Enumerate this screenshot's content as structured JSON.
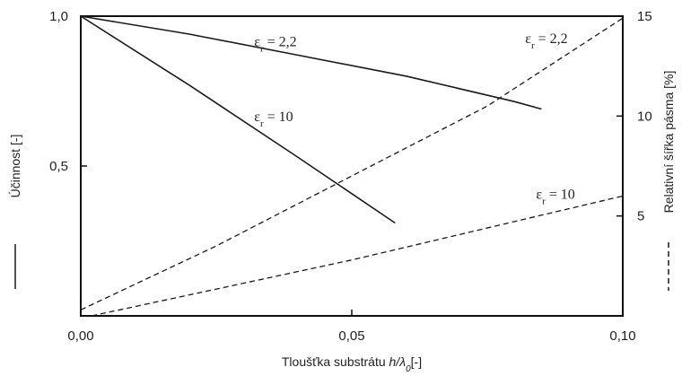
{
  "chart_data": {
    "type": "line",
    "xlabel_prefix": "Tloušťka substrátu ",
    "xlabel_var": "h/λ",
    "xlabel_sub": "0",
    "xlabel_suffix": "[-]",
    "ylabel_left": "Účinnost [-]",
    "ylabel_right": "Relativní šířka pásma [%]",
    "xlim": [
      0,
      0.1
    ],
    "ylim_left": [
      0,
      1
    ],
    "ylim_right": [
      0,
      15
    ],
    "x_ticks": [
      {
        "value": 0,
        "label": "0,00"
      },
      {
        "value": 0.05,
        "label": "0,05"
      },
      {
        "value": 0.1,
        "label": "0,10"
      }
    ],
    "y_left_ticks": [
      {
        "value": 0.5,
        "label": "0,5"
      },
      {
        "value": 1.0,
        "label": "1,0"
      }
    ],
    "y_right_ticks": [
      {
        "value": 5,
        "label": "5"
      },
      {
        "value": 10,
        "label": "10"
      },
      {
        "value": 15,
        "label": "15"
      }
    ],
    "series": [
      {
        "axis": "left",
        "style": "solid",
        "x": [
          0,
          0.02,
          0.04,
          0.06,
          0.08,
          0.085
        ],
        "y": [
          1.0,
          0.94,
          0.87,
          0.8,
          0.715,
          0.69
        ]
      },
      {
        "axis": "left",
        "style": "solid",
        "x": [
          0,
          0.02,
          0.04,
          0.058
        ],
        "y": [
          1.0,
          0.77,
          0.53,
          0.31
        ]
      },
      {
        "axis": "right",
        "style": "dashed",
        "x": [
          0,
          0.025,
          0.05,
          0.075,
          0.1
        ],
        "y": [
          0.3,
          3.5,
          7.0,
          10.5,
          14.9
        ]
      },
      {
        "axis": "right",
        "style": "dashed",
        "x": [
          0.002,
          0.05,
          0.1
        ],
        "y": [
          0,
          2.8,
          6.0
        ]
      }
    ],
    "annotations": [
      {
        "symbol": "ε",
        "sub": "r",
        "text": " = 2,2",
        "x": 0.032,
        "y": 0.9
      },
      {
        "symbol": "ε",
        "sub": "r",
        "text": " = 10",
        "x": 0.032,
        "y": 0.65
      },
      {
        "symbol": "ε",
        "sub": "r",
        "text": " = 2,2",
        "x": 0.082,
        "y": 0.91
      },
      {
        "symbol": "ε",
        "sub": "r",
        "text": " = 10",
        "x": 0.084,
        "y": 0.39
      }
    ],
    "grid": false
  }
}
